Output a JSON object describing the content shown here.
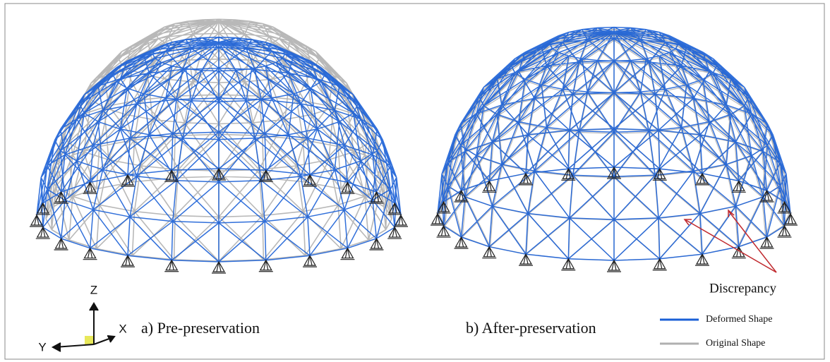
{
  "panels": [
    {
      "label": "a) Pre-preservation"
    },
    {
      "label": "b) After-preservation"
    }
  ],
  "axes": {
    "z": "Z",
    "x": "X",
    "y": "Y"
  },
  "annotation": "Discrepancy",
  "legend": {
    "items": [
      {
        "label": "Deformed Shape",
        "color": "#1a5fd6"
      },
      {
        "label": "Original Shape",
        "color": "#b0b0b0"
      }
    ]
  }
}
